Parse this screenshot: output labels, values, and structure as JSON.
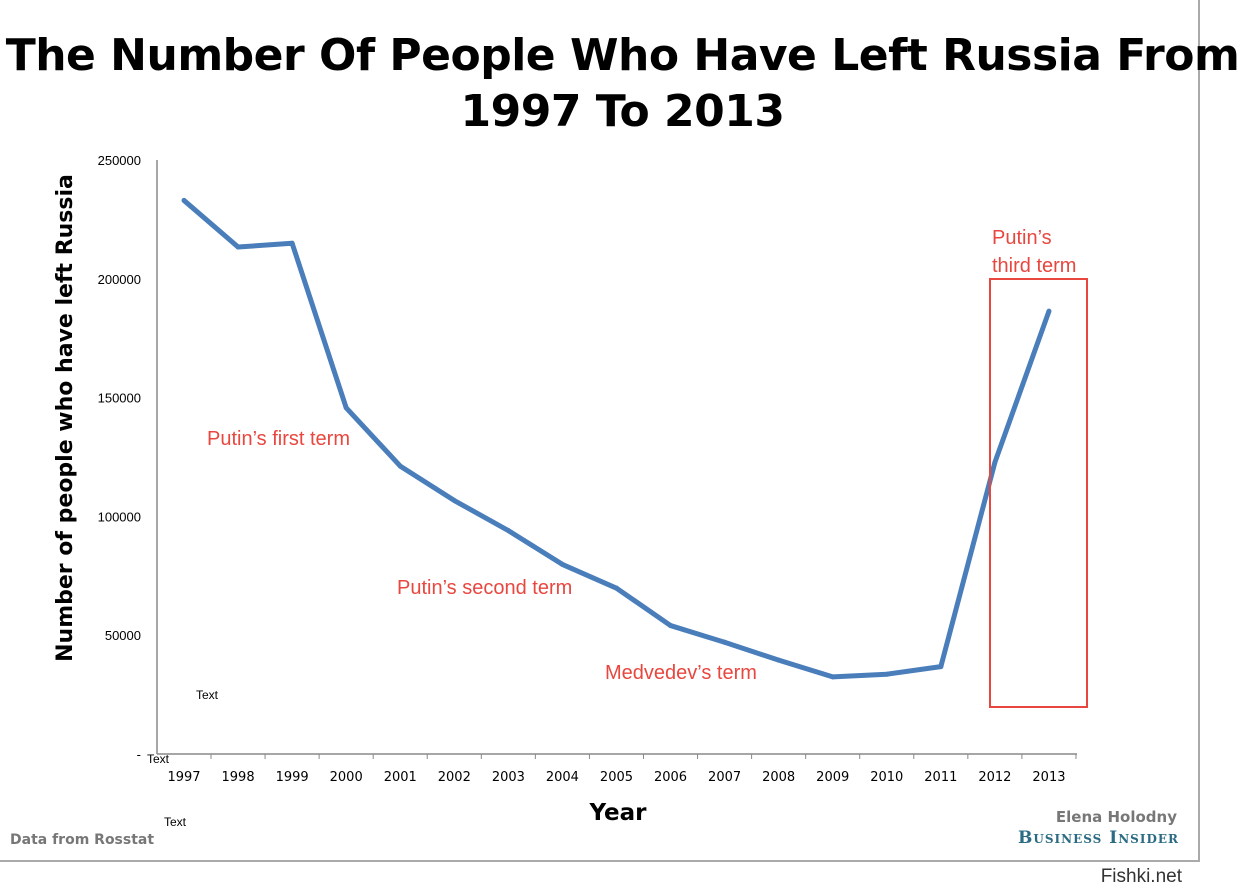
{
  "chart_data": {
    "type": "line",
    "title": "The Number Of People Who Have Left Russia From 1997 To 2013",
    "xlabel": "Year",
    "ylabel": "Number of people who have left Russia",
    "ylim": [
      0,
      250000
    ],
    "yticks": [
      "250000",
      "200000",
      "150000",
      "100000",
      "50000",
      "-"
    ],
    "categories": [
      "1997",
      "1998",
      "1999",
      "2000",
      "2001",
      "2002",
      "2003",
      "2004",
      "2005",
      "2006",
      "2007",
      "2008",
      "2009",
      "2010",
      "2011",
      "2012",
      "2013"
    ],
    "values": [
      232987,
      213377,
      214963,
      145720,
      121166,
      106685,
      94018,
      79795,
      69798,
      54061,
      47013,
      39508,
      32458,
      33578,
      36774,
      122751,
      186382
    ],
    "line_color": "#4a7ebb",
    "annotation_color": "#e8473f",
    "grid": false,
    "annotations": [
      {
        "text": "Putin’s first term"
      },
      {
        "text": "Putin’s second term"
      },
      {
        "text": "Medvedev’s term"
      },
      {
        "text": "Putin’s third term",
        "lines": [
          "Putin’s",
          "third term"
        ]
      }
    ],
    "placeholders": [
      "Text",
      "Text",
      "Text"
    ]
  },
  "footer": {
    "source": "Data from Rosstat",
    "author": "Elena Holodny",
    "brand": "Business Insider",
    "watermark": "Fishki.net"
  }
}
